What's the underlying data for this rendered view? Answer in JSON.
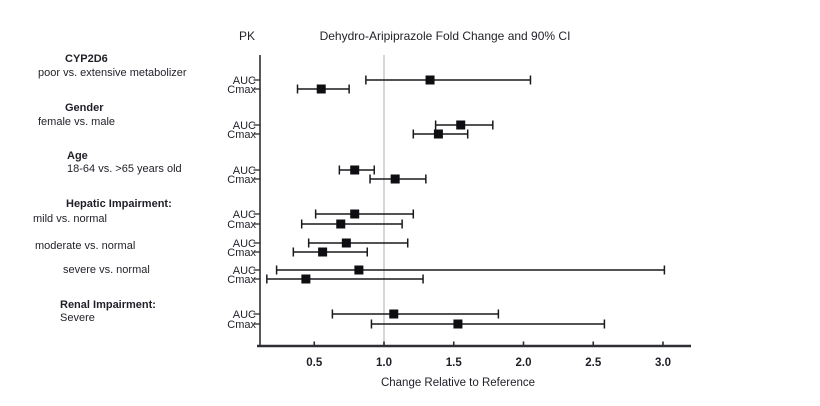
{
  "header": {
    "pk_column_header": "PK",
    "title": "Dehydro-Aripiprazole Fold Change and 90% CI"
  },
  "chart_data": {
    "type": "forest",
    "title": "Dehydro-Aripiprazole Fold Change and 90% CI",
    "pk_column_header": "PK",
    "xlabel": "Change Relative to Reference",
    "ci_level": "90% CI",
    "x_ticks": [
      "0.5",
      "1.0",
      "1.5",
      "2.0",
      "2.5",
      "3.0"
    ],
    "x_tick_values": [
      0.5,
      1.0,
      1.5,
      2.0,
      2.5,
      3.0
    ],
    "xlim": [
      0.1,
      3.2
    ],
    "reference_line": 1.0,
    "grid": "off",
    "marker_shape": "filled-square",
    "colors": {
      "marker": "#0e0e12",
      "ci_line": "#1a1a1e",
      "axis": "#2e2e33",
      "reference_line": "#c9c9c9",
      "text": "#1f1f28"
    },
    "groups": [
      {
        "heading": "CYP2D6",
        "comparisons": [
          {
            "label": "poor vs. extensive metabolizer",
            "measures": [
              {
                "pk": "AUC",
                "estimate": 1.33,
                "ci90_low": 0.87,
                "ci90_high": 2.05
              },
              {
                "pk": "Cmax",
                "estimate": 0.55,
                "ci90_low": 0.38,
                "ci90_high": 0.75
              }
            ]
          }
        ]
      },
      {
        "heading": "Gender",
        "comparisons": [
          {
            "label": "female vs. male",
            "measures": [
              {
                "pk": "AUC",
                "estimate": 1.55,
                "ci90_low": 1.37,
                "ci90_high": 1.78
              },
              {
                "pk": "Cmax",
                "estimate": 1.39,
                "ci90_low": 1.21,
                "ci90_high": 1.6
              }
            ]
          }
        ]
      },
      {
        "heading": "Age",
        "comparisons": [
          {
            "label": "18-64 vs. >65 years old",
            "measures": [
              {
                "pk": "AUC",
                "estimate": 0.79,
                "ci90_low": 0.68,
                "ci90_high": 0.93
              },
              {
                "pk": "Cmax",
                "estimate": 1.08,
                "ci90_low": 0.9,
                "ci90_high": 1.3
              }
            ]
          }
        ]
      },
      {
        "heading": "Hepatic Impairment:",
        "comparisons": [
          {
            "label": "mild vs. normal",
            "measures": [
              {
                "pk": "AUC",
                "estimate": 0.79,
                "ci90_low": 0.51,
                "ci90_high": 1.21
              },
              {
                "pk": "Cmax",
                "estimate": 0.69,
                "ci90_low": 0.41,
                "ci90_high": 1.13
              }
            ]
          },
          {
            "label": "moderate vs. normal",
            "measures": [
              {
                "pk": "AUC",
                "estimate": 0.73,
                "ci90_low": 0.46,
                "ci90_high": 1.17
              },
              {
                "pk": "Cmax",
                "estimate": 0.56,
                "ci90_low": 0.35,
                "ci90_high": 0.88
              }
            ]
          },
          {
            "label": "severe vs. normal",
            "measures": [
              {
                "pk": "AUC",
                "estimate": 0.82,
                "ci90_low": 0.23,
                "ci90_high": 3.01
              },
              {
                "pk": "Cmax",
                "estimate": 0.44,
                "ci90_low": 0.16,
                "ci90_high": 1.28
              }
            ]
          }
        ]
      },
      {
        "heading": "Renal Impairment:",
        "comparisons": [
          {
            "label": "Severe",
            "measures": [
              {
                "pk": "AUC",
                "estimate": 1.07,
                "ci90_low": 0.63,
                "ci90_high": 1.82
              },
              {
                "pk": "Cmax",
                "estimate": 1.53,
                "ci90_low": 0.91,
                "ci90_high": 2.58
              }
            ]
          }
        ]
      }
    ]
  }
}
